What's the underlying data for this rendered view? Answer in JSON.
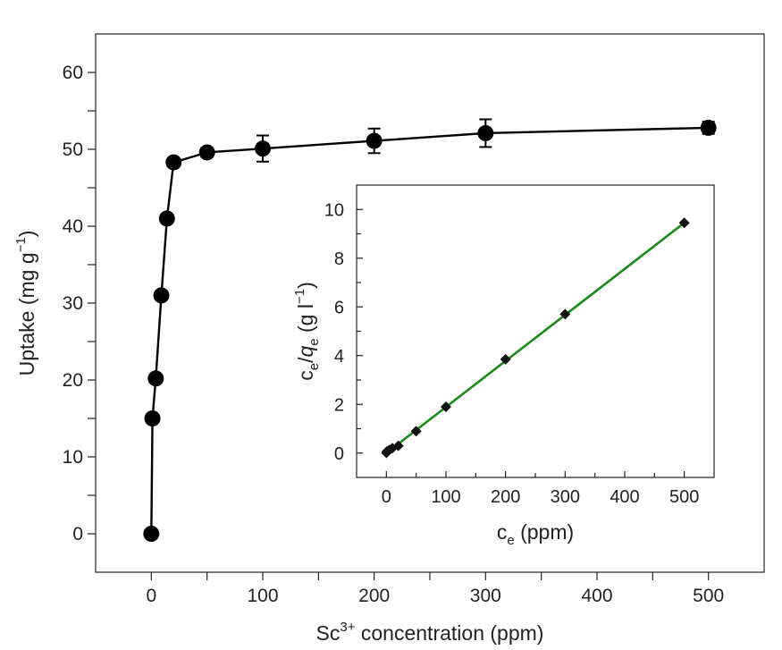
{
  "chart_data": [
    {
      "type": "scatter",
      "role": "main",
      "xlabel": "Sc",
      "xlabel_sup": "3+",
      "xlabel_tail": " concentration (ppm)",
      "ylabel": "Uptake (mg g",
      "ylabel_sup": "−1",
      "ylabel_tail": ")",
      "xlim": [
        -50,
        550
      ],
      "ylim": [
        -5,
        65
      ],
      "xticks": [
        0,
        100,
        200,
        300,
        400,
        500
      ],
      "xtick_labels": [
        "0",
        "100",
        "200",
        "300",
        "400",
        "500"
      ],
      "yticks": [
        0,
        10,
        20,
        30,
        40,
        50,
        60
      ],
      "ytick_labels": [
        "0",
        "10",
        "20",
        "30",
        "40",
        "50",
        "60"
      ],
      "series": [
        {
          "x": [
            0,
            1,
            4,
            9,
            14,
            20,
            50,
            100,
            200,
            300,
            500
          ],
          "y": [
            0,
            15,
            20.2,
            31,
            41,
            48.3,
            49.6,
            50.1,
            51.1,
            52.1,
            52.8
          ],
          "yerr": [
            0,
            0,
            0,
            0,
            0,
            0,
            0.6,
            1.7,
            1.6,
            1.8,
            0.8
          ],
          "color": "#000000",
          "line": true
        }
      ],
      "grid": false
    },
    {
      "type": "scatter",
      "role": "inset",
      "xlabel": "c",
      "xlabel_sub": "e",
      "xlabel_tail": " (ppm)",
      "ylabel": "c",
      "ylabel_sub": "e",
      "ylabel_mid": "/",
      "ylabel_q": "q",
      "ylabel_q_sub": "e",
      "ylabel_tail1": " (g l",
      "ylabel_sup": "−1",
      "ylabel_tail2": ")",
      "xlim": [
        -50,
        550
      ],
      "ylim": [
        -1,
        11
      ],
      "xticks": [
        0,
        100,
        200,
        300,
        400,
        500
      ],
      "xtick_labels": [
        "0",
        "100",
        "200",
        "300",
        "400",
        "500"
      ],
      "yticks": [
        0,
        2,
        4,
        6,
        8,
        10
      ],
      "ytick_labels": [
        "0",
        "2",
        "4",
        "6",
        "8",
        "10"
      ],
      "series": [
        {
          "x": [
            0.1,
            1,
            5,
            10,
            20,
            50,
            100,
            200,
            300,
            500
          ],
          "y": [
            0.01,
            0.07,
            0.13,
            0.2,
            0.3,
            0.9,
            1.9,
            3.85,
            5.7,
            9.45
          ],
          "color": "#000000",
          "marker": "diamond"
        }
      ],
      "fit_line": {
        "x": [
          0,
          500
        ],
        "y": [
          0.0,
          9.45
        ],
        "color": "#1a8a1a"
      },
      "grid": false
    }
  ]
}
